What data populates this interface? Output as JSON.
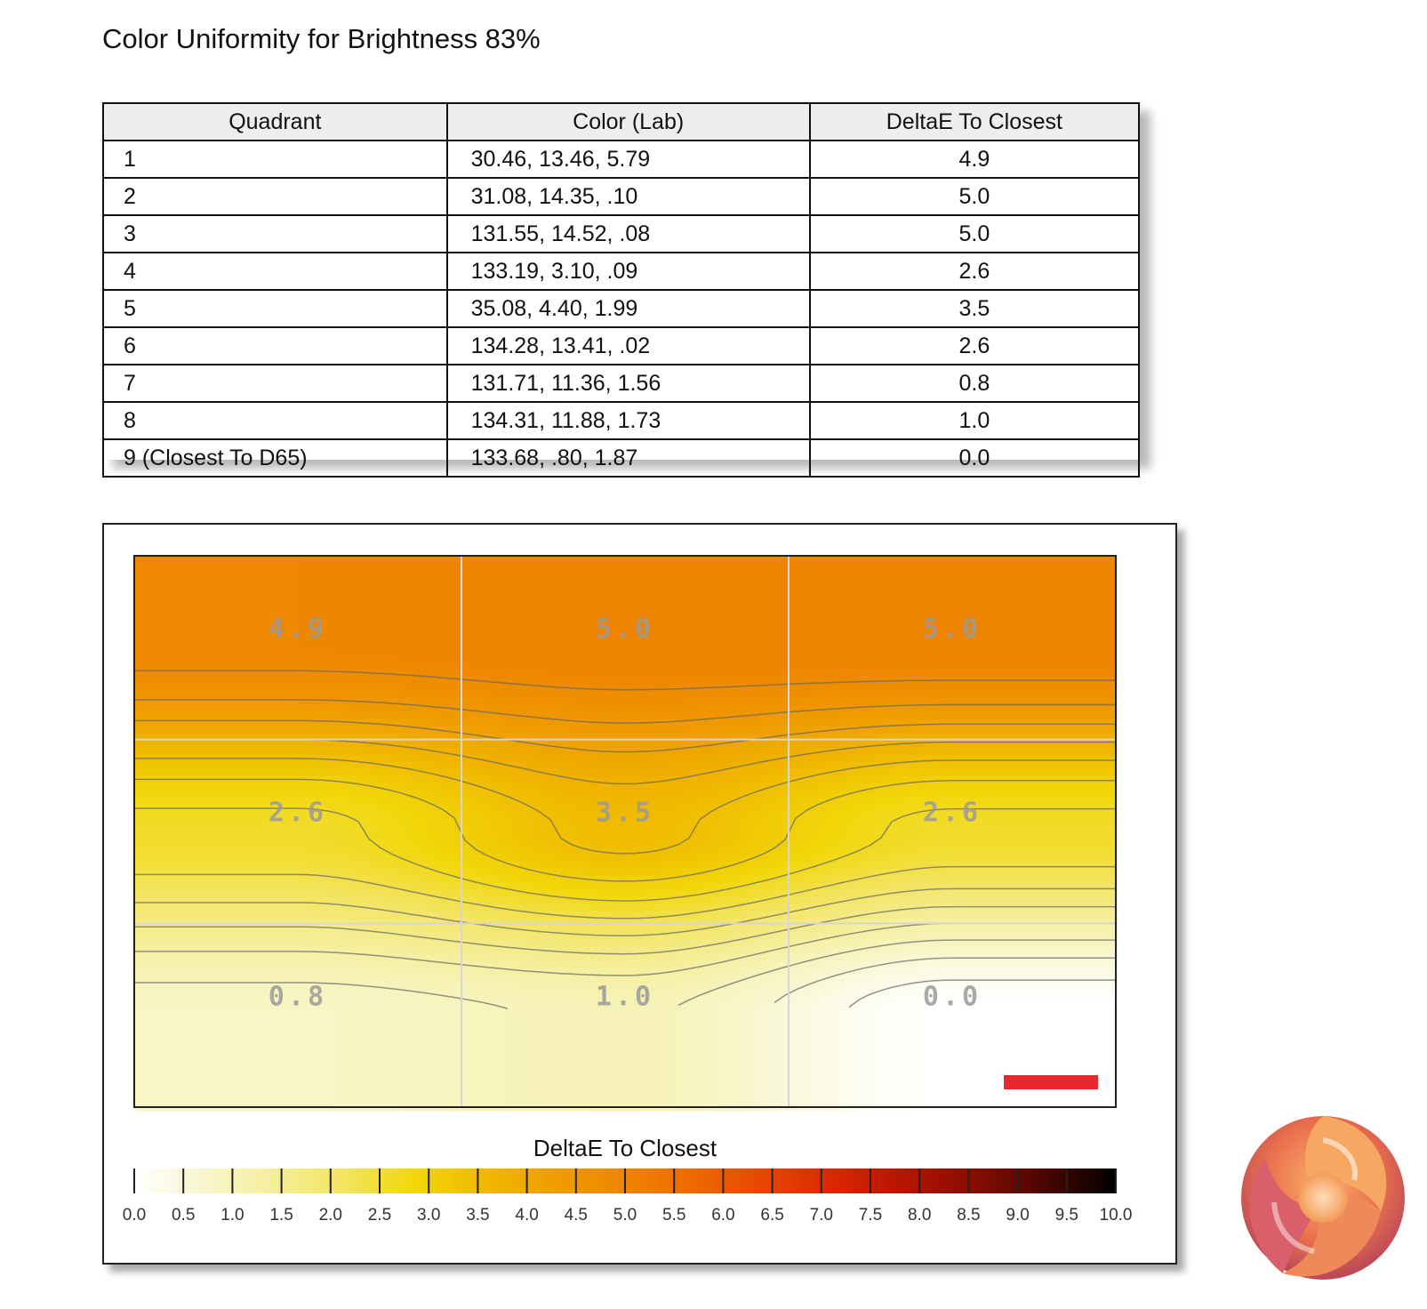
{
  "title": "Color Uniformity for Brightness 83%",
  "table": {
    "headers": [
      "Quadrant",
      "Color (Lab)",
      "DeltaE To Closest"
    ],
    "rows": [
      {
        "quadrant": "1",
        "lab": "30.46,  13.46,   5.79",
        "delta": "4.9"
      },
      {
        "quadrant": "2",
        "lab": "31.08,  14.35,    .10",
        "delta": "5.0"
      },
      {
        "quadrant": "3",
        "lab": "131.55,  14.52,    .08",
        "delta": "5.0"
      },
      {
        "quadrant": "4",
        "lab": "133.19,   3.10,    .09",
        "delta": "2.6"
      },
      {
        "quadrant": "5",
        "lab": "35.08,   4.40,   1.99",
        "delta": "3.5"
      },
      {
        "quadrant": "6",
        "lab": "134.28,  13.41,    .02",
        "delta": "2.6"
      },
      {
        "quadrant": "7",
        "lab": "131.71,  11.36,   1.56",
        "delta": "0.8"
      },
      {
        "quadrant": "8",
        "lab": "134.31,  11.88,   1.73",
        "delta": "1.0"
      },
      {
        "quadrant": "9 (Closest To D65)",
        "lab": "133.68,    .80,   1.87",
        "delta": "0.0"
      }
    ]
  },
  "chart_data": {
    "type": "heatmap",
    "grid": {
      "rows": 3,
      "cols": 3
    },
    "values": [
      [
        4.9,
        5.0,
        5.0
      ],
      [
        2.6,
        3.5,
        2.6
      ],
      [
        0.8,
        1.0,
        0.0
      ]
    ],
    "cell_labels": [
      [
        "4.9",
        "5.0",
        "5.0"
      ],
      [
        "2.6",
        "3.5",
        "2.6"
      ],
      [
        "0.8",
        "1.0",
        "0.0"
      ]
    ],
    "colorbar": {
      "title": "DeltaE To Closest",
      "min": 0.0,
      "max": 10.0,
      "ticks": [
        "0.0",
        "0.5",
        "1.0",
        "1.5",
        "2.0",
        "2.5",
        "3.0",
        "3.5",
        "4.0",
        "4.5",
        "5.0",
        "5.5",
        "6.0",
        "6.5",
        "7.0",
        "7.5",
        "8.0",
        "8.5",
        "9.0",
        "9.5",
        "10.0"
      ],
      "colors": [
        "#ffffff",
        "#f8f6cc",
        "#f5ee9a",
        "#f3e460",
        "#f1d70a",
        "#f0b800",
        "#ef9d00",
        "#ee8400",
        "#ef6800",
        "#e84500",
        "#d92600",
        "#b41400",
        "#850d00",
        "#4a0500",
        "#000000"
      ]
    },
    "grid_lines": true,
    "legend": "bottom"
  },
  "colors": {
    "table_header_bg": "#eeeeee",
    "marker": "#e8272f"
  },
  "logo": {
    "name": "logo-icon"
  }
}
